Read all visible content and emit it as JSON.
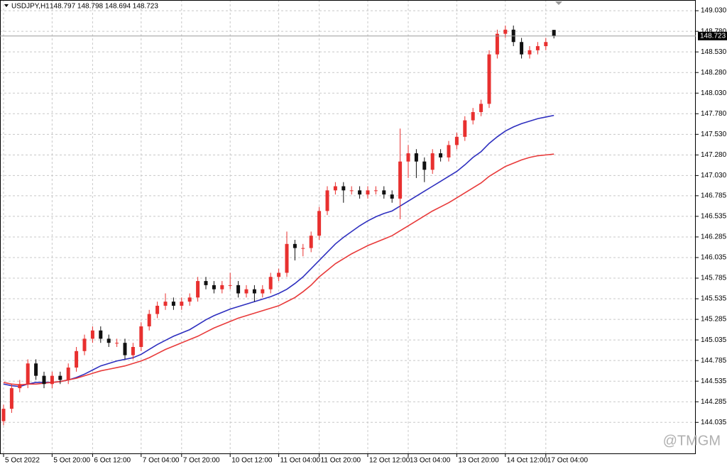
{
  "chart_data": {
    "type": "candlestick",
    "title": "USDJPY,H1",
    "ohlc_label": "148.797 148.798 148.694 148.723",
    "watermark": "@TMGM",
    "categories": [
      "5 Oct 2022",
      null,
      null,
      null,
      null,
      null,
      "5 Oct 20:00",
      null,
      null,
      null,
      null,
      "6 Oct 12:00",
      null,
      null,
      null,
      null,
      null,
      "7 Oct 04:00",
      null,
      null,
      null,
      null,
      "7 Oct 20:00",
      null,
      null,
      null,
      null,
      null,
      "10 Oct 12:00",
      null,
      null,
      null,
      null,
      null,
      "11 Oct 04:00",
      null,
      null,
      null,
      null,
      "11 Oct 20:00",
      null,
      null,
      null,
      null,
      null,
      "12 Oct 12:00",
      null,
      null,
      null,
      null,
      "13 Oct 04:00",
      null,
      null,
      null,
      null,
      null,
      "13 Oct 20:00",
      null,
      null,
      null,
      null,
      null,
      "14 Oct 12:00",
      null,
      null,
      null,
      null,
      "17 Oct 04:00",
      null
    ],
    "open": [
      144.05,
      144.2,
      144.45,
      144.5,
      144.75,
      144.6,
      144.5,
      144.6,
      144.55,
      144.7,
      144.9,
      145.05,
      145.15,
      145.05,
      145.0,
      145.0,
      144.85,
      144.95,
      145.2,
      145.35,
      145.45,
      145.5,
      145.45,
      145.5,
      145.55,
      145.75,
      145.7,
      145.65,
      145.7,
      145.7,
      145.6,
      145.65,
      145.6,
      145.65,
      145.8,
      145.85,
      146.2,
      146.15,
      146.15,
      146.3,
      146.6,
      146.85,
      146.9,
      146.85,
      146.85,
      146.8,
      146.85,
      146.85,
      146.8,
      146.75,
      147.2,
      147.3,
      147.2,
      147.1,
      147.3,
      147.25,
      147.4,
      147.5,
      147.7,
      147.8,
      147.9,
      148.5,
      148.75,
      148.8,
      148.65,
      148.5,
      148.55,
      148.6,
      148.797
    ],
    "high": [
      144.25,
      144.5,
      144.55,
      144.8,
      144.8,
      144.65,
      144.65,
      144.65,
      144.75,
      144.95,
      145.1,
      145.2,
      145.2,
      145.1,
      145.05,
      145.05,
      145.0,
      145.25,
      145.4,
      145.5,
      145.6,
      145.55,
      145.55,
      145.6,
      145.8,
      145.8,
      145.75,
      145.75,
      145.85,
      145.75,
      145.7,
      145.7,
      145.7,
      145.85,
      145.9,
      146.35,
      146.25,
      146.2,
      146.35,
      146.65,
      146.9,
      146.95,
      146.95,
      146.9,
      146.9,
      146.9,
      146.9,
      146.9,
      146.85,
      147.6,
      147.4,
      147.35,
      147.25,
      147.35,
      147.35,
      147.45,
      147.55,
      147.75,
      147.85,
      147.95,
      148.55,
      148.8,
      148.85,
      148.85,
      148.7,
      148.6,
      148.65,
      148.7,
      148.798
    ],
    "low": [
      144.0,
      144.15,
      144.4,
      144.45,
      144.55,
      144.45,
      144.45,
      144.5,
      144.5,
      144.65,
      144.85,
      145.0,
      145.0,
      144.95,
      144.95,
      144.8,
      144.8,
      144.9,
      145.15,
      145.3,
      145.4,
      145.4,
      145.4,
      145.45,
      145.5,
      145.65,
      145.6,
      145.6,
      145.65,
      145.55,
      145.55,
      145.5,
      145.55,
      145.6,
      145.75,
      145.8,
      146.0,
      146.05,
      146.1,
      146.25,
      146.55,
      146.8,
      146.7,
      146.8,
      146.75,
      146.75,
      146.8,
      146.75,
      146.7,
      146.5,
      147.0,
      147.0,
      146.95,
      147.05,
      147.2,
      147.2,
      147.35,
      147.45,
      147.65,
      147.75,
      147.85,
      148.45,
      148.7,
      148.6,
      148.45,
      148.45,
      148.5,
      148.55,
      148.694
    ],
    "close": [
      144.2,
      144.45,
      144.5,
      144.75,
      144.6,
      144.5,
      144.6,
      144.55,
      144.7,
      144.9,
      145.05,
      145.15,
      145.05,
      145.0,
      145.0,
      144.85,
      144.95,
      145.2,
      145.35,
      145.45,
      145.5,
      145.45,
      145.5,
      145.55,
      145.75,
      145.7,
      145.65,
      145.7,
      145.7,
      145.6,
      145.65,
      145.6,
      145.65,
      145.8,
      145.85,
      146.2,
      146.15,
      146.15,
      146.3,
      146.6,
      146.85,
      146.9,
      146.85,
      146.85,
      146.8,
      146.85,
      146.85,
      146.8,
      146.75,
      147.2,
      147.3,
      147.2,
      147.1,
      147.3,
      147.25,
      147.4,
      147.5,
      147.7,
      147.8,
      147.9,
      148.5,
      148.75,
      148.8,
      148.65,
      148.5,
      148.55,
      148.6,
      148.65,
      148.723
    ],
    "up_color": "#e8302f",
    "down_color": "#111111",
    "lines": [
      {
        "color": "#2e2fbf",
        "values": [
          144.5,
          144.48,
          144.47,
          144.5,
          144.52,
          144.52,
          144.52,
          144.53,
          144.55,
          144.58,
          144.62,
          144.67,
          144.72,
          144.75,
          144.78,
          144.8,
          144.82,
          144.86,
          144.92,
          144.98,
          145.03,
          145.08,
          145.12,
          145.16,
          145.22,
          145.28,
          145.33,
          145.37,
          145.41,
          145.44,
          145.47,
          145.5,
          145.53,
          145.56,
          145.6,
          145.65,
          145.72,
          145.8,
          145.9,
          146.0,
          146.1,
          146.2,
          146.28,
          146.35,
          146.42,
          146.48,
          146.53,
          146.57,
          146.6,
          146.66,
          146.72,
          146.78,
          146.84,
          146.9,
          146.96,
          147.02,
          147.08,
          147.16,
          147.25,
          147.32,
          147.42,
          147.5,
          147.57,
          147.62,
          147.66,
          147.69,
          147.72,
          147.74,
          147.76
        ]
      },
      {
        "color": "#e83a3a",
        "values": [
          144.52,
          144.5,
          144.49,
          144.5,
          144.5,
          144.51,
          144.52,
          144.53,
          144.55,
          144.57,
          144.6,
          144.63,
          144.66,
          144.68,
          144.7,
          144.72,
          144.75,
          144.78,
          144.82,
          144.87,
          144.92,
          144.96,
          145.0,
          145.04,
          145.08,
          145.13,
          145.18,
          145.22,
          145.26,
          145.3,
          145.33,
          145.36,
          145.39,
          145.42,
          145.45,
          145.5,
          145.55,
          145.62,
          145.7,
          145.8,
          145.88,
          145.96,
          146.02,
          146.08,
          146.13,
          146.18,
          146.22,
          146.26,
          146.3,
          146.36,
          146.42,
          146.48,
          146.54,
          146.6,
          146.65,
          146.7,
          146.76,
          146.82,
          146.88,
          146.94,
          147.02,
          147.08,
          147.14,
          147.18,
          147.22,
          147.25,
          147.27,
          147.28,
          147.29
        ]
      }
    ],
    "current_price": 148.723,
    "ylim": [
      143.65,
      149.16
    ],
    "yticks": [
      {
        "value": 149.03,
        "label": "149.030"
      },
      {
        "value": 148.78,
        "label": "148.780"
      },
      {
        "value": 148.53,
        "label": "148.530"
      },
      {
        "value": 148.28,
        "label": "148.280"
      },
      {
        "value": 148.03,
        "label": "148.030"
      },
      {
        "value": 147.78,
        "label": "147.780"
      },
      {
        "value": 147.53,
        "label": "147.530"
      },
      {
        "value": 147.28,
        "label": "147.280"
      },
      {
        "value": 147.03,
        "label": "147.030"
      },
      {
        "value": 146.785,
        "label": "146.785"
      },
      {
        "value": 146.535,
        "label": "146.535"
      },
      {
        "value": 146.285,
        "label": "146.285"
      },
      {
        "value": 146.035,
        "label": "146.035"
      },
      {
        "value": 145.785,
        "label": "145.785"
      },
      {
        "value": 145.535,
        "label": "145.535"
      },
      {
        "value": 145.285,
        "label": "145.285"
      },
      {
        "value": 145.035,
        "label": "145.035"
      },
      {
        "value": 144.785,
        "label": "144.785"
      },
      {
        "value": 144.535,
        "label": "144.535"
      },
      {
        "value": 144.285,
        "label": "144.285"
      },
      {
        "value": 144.035,
        "label": "144.035"
      }
    ],
    "grid": true
  }
}
